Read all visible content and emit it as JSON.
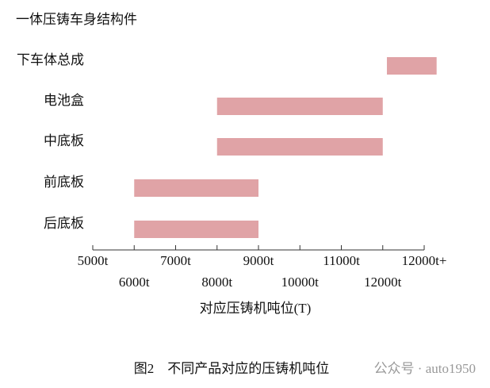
{
  "chart_data": {
    "type": "range-bar",
    "title": "一体压铸车身结构件",
    "categories": [
      "下车体总成",
      "电池盒",
      "中底板",
      "前底板",
      "后底板"
    ],
    "values": [
      [
        12100,
        13300
      ],
      [
        8000,
        12000
      ],
      [
        8000,
        12000
      ],
      [
        6000,
        9000
      ],
      [
        6000,
        9000
      ]
    ],
    "color": "#e0a3a6",
    "xlim": [
      5000,
      13000
    ],
    "xticks": [
      {
        "value": 5000,
        "label": "5000t"
      },
      {
        "value": 6000,
        "label": "6000t"
      },
      {
        "value": 7000,
        "label": "7000t"
      },
      {
        "value": 8000,
        "label": "8000t"
      },
      {
        "value": 9000,
        "label": "9000t"
      },
      {
        "value": 10000,
        "label": "10000t"
      },
      {
        "value": 11000,
        "label": "11000t"
      },
      {
        "value": 12000,
        "label": "12000t"
      },
      {
        "value": 13000,
        "label": "12000t+"
      }
    ],
    "xlabel": "对应压铸机吨位(T)",
    "caption": "图2　不同产品对应的压铸机吨位",
    "watermark": "公众号 · auto1950"
  }
}
